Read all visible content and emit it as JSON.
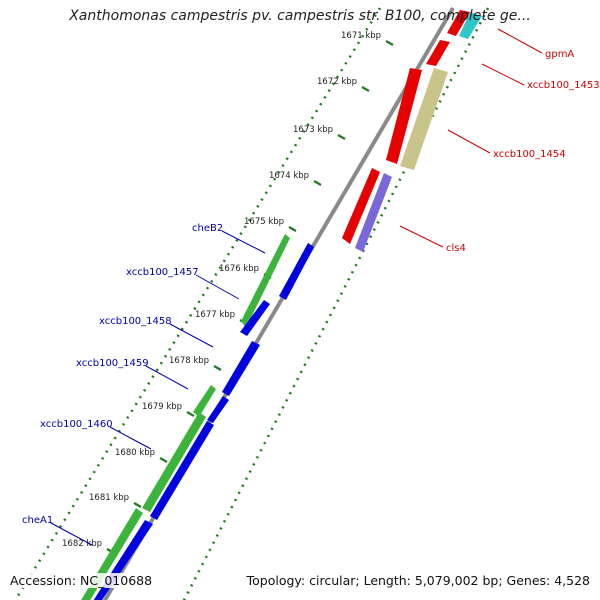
{
  "title": "Xanthomonas campestris pv. campestris str. B100, complete ge...",
  "footer": {
    "accession": "Accession: NC_010688",
    "summary": "Topology: circular; Length: 5,079,002 bp; Genes: 4,528"
  },
  "colors": {
    "backbone": "#8a8a8a",
    "tick": "#1f7a1f",
    "forward_label": "#cc0000",
    "reverse_label": "#0000aa",
    "red_gene": "#e60000",
    "cyan_gene": "#2ec7c7",
    "khaki_gene": "#c9c48a",
    "purple_gene": "#7b68d8",
    "green_gene": "#3cb43c",
    "blue_gene": "#0000e0"
  },
  "ticks": [
    "1671 kbp",
    "1672 kbp",
    "1673 kbp",
    "1674 kbp",
    "1675 kbp",
    "1676 kbp",
    "1677 kbp",
    "1678 kbp",
    "1679 kbp",
    "1680 kbp",
    "1681 kbp",
    "1682 kbp"
  ],
  "genes_right": [
    "gpmA",
    "xccb100_1453",
    "xccb100_1454",
    "cls4"
  ],
  "genes_left": [
    "cheB2",
    "xccb100_1457",
    "xccb100_1458",
    "xccb100_1459",
    "xccb100_1460",
    "cheA1"
  ]
}
